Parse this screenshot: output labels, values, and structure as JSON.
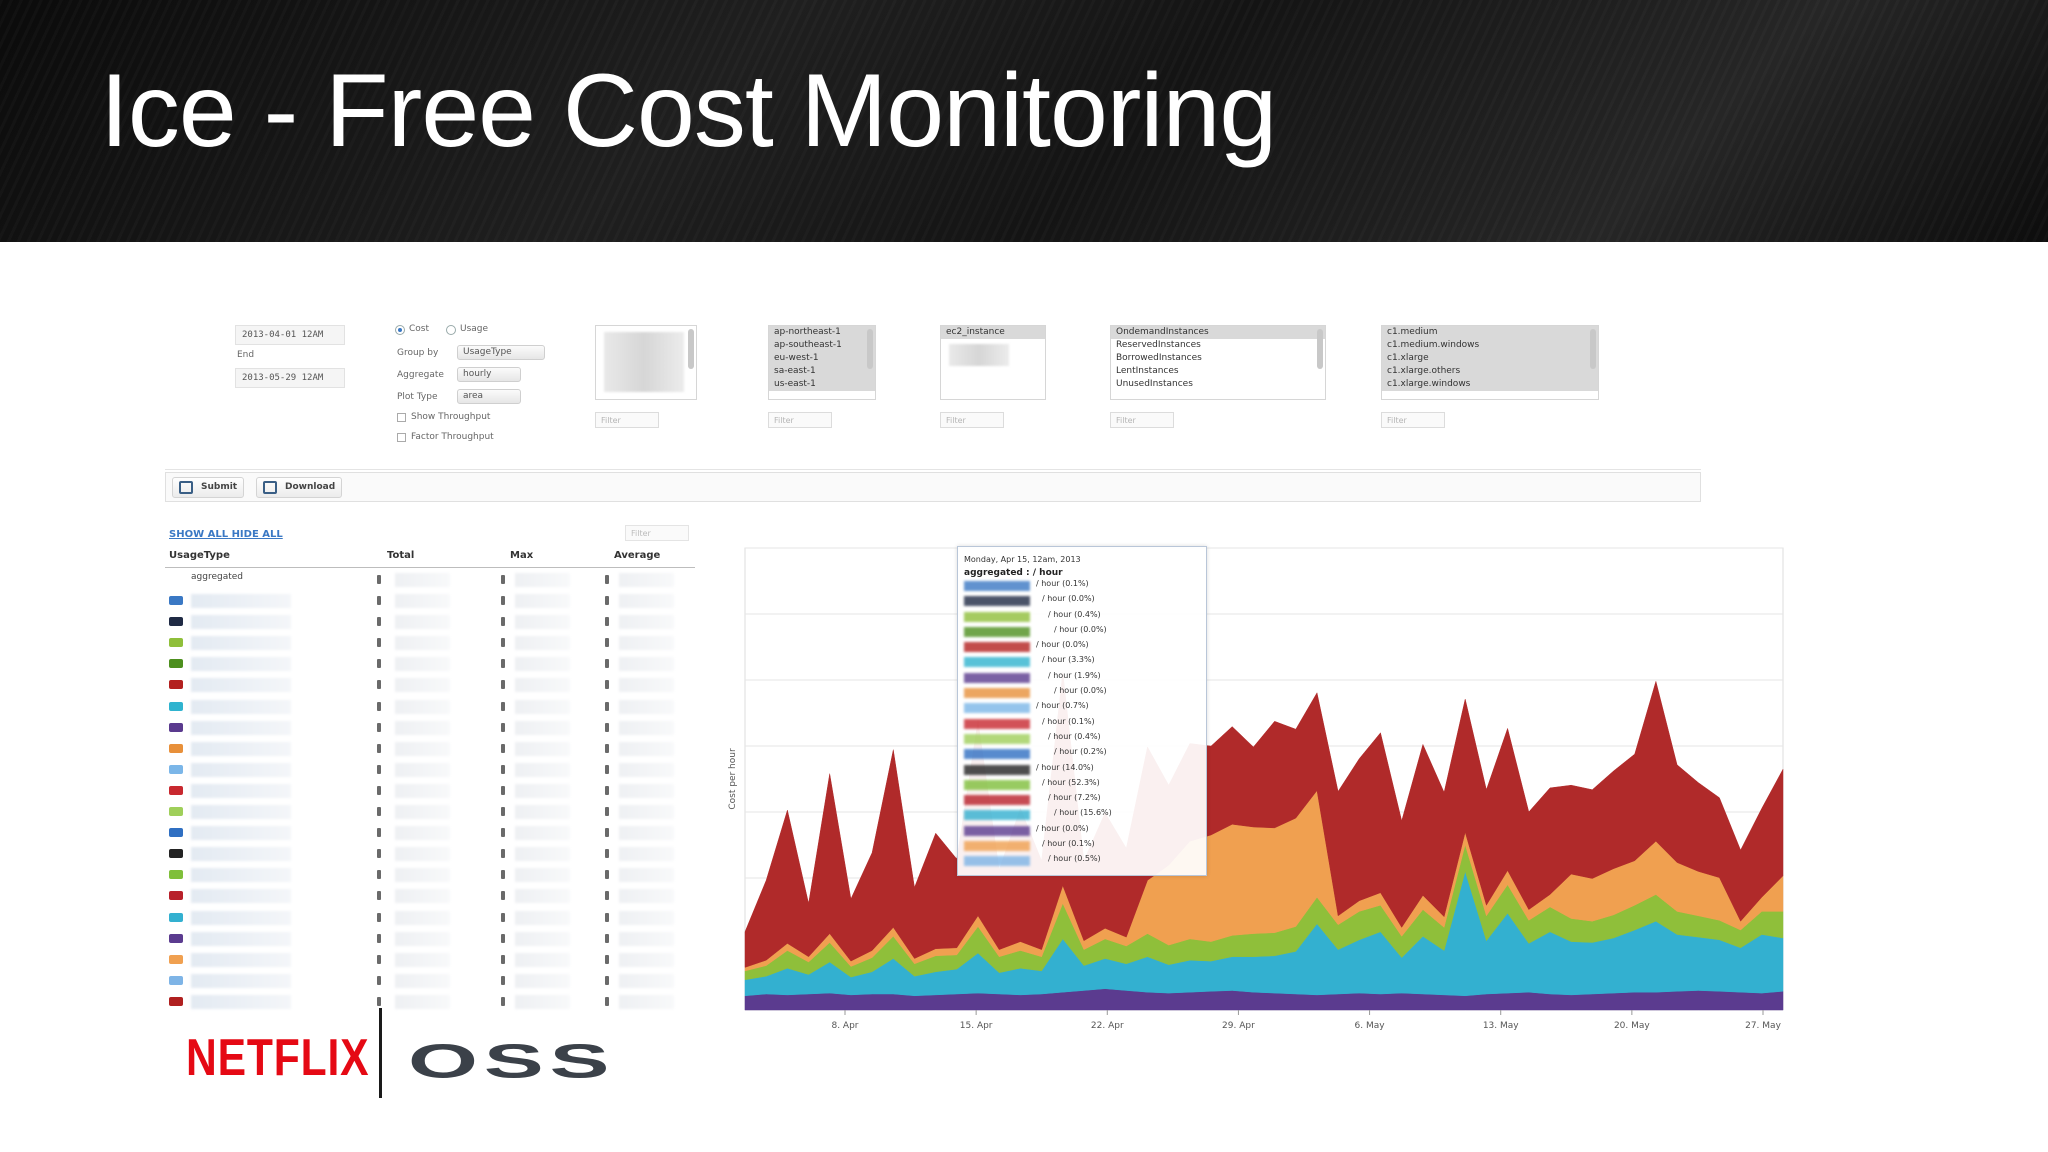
{
  "slide": {
    "title": "Ice - Free Cost Monitoring"
  },
  "controls": {
    "start_date": "2013-04-01 12AM",
    "end_label": "End",
    "end_date": "2013-05-29 12AM",
    "metric_cost": "Cost",
    "metric_usage": "Usage",
    "metric_selected": "Cost",
    "group_by_label": "Group by",
    "group_by_value": "UsageType",
    "aggregate_label": "Aggregate",
    "aggregate_value": "hourly",
    "plot_type_label": "Plot Type",
    "plot_type_value": "area",
    "show_throughput_label": "Show Throughput",
    "factor_throughput_label": "Factor Throughput",
    "filter_placeholder": "Filter",
    "regions": [
      "ap-northeast-1",
      "ap-southeast-1",
      "eu-west-1",
      "sa-east-1",
      "us-east-1"
    ],
    "products": [
      "ec2_instance"
    ],
    "operations": [
      "OndemandInstances",
      "ReservedInstances",
      "BorrowedInstances",
      "LentInstances",
      "UnusedInstances"
    ],
    "usage_types": [
      "c1.medium",
      "c1.medium.windows",
      "c1.xlarge",
      "c1.xlarge.others",
      "c1.xlarge.windows"
    ]
  },
  "toolbar": {
    "submit_label": "Submit",
    "download_label": "Download"
  },
  "legend": {
    "show_all": "SHOW ALL",
    "hide_all": "HIDE ALL",
    "filter_placeholder": "Filter",
    "columns": [
      "UsageType",
      "Total",
      "Max",
      "Average"
    ],
    "aggregated_label": "aggregated",
    "swatch_colors": [
      "#3a78c4",
      "#1f2a44",
      "#8fbf3a",
      "#4d8f1e",
      "#b3201f",
      "#2fb3cf",
      "#5a3a8e",
      "#e8903a",
      "#7bb6e8",
      "#c8282f",
      "#9fcf5a",
      "#2f6fc2",
      "#232323",
      "#7fbf3a",
      "#b8202a",
      "#33b0d0",
      "#5b3b8f",
      "#f0a050",
      "#7eb4e6",
      "#b02020"
    ]
  },
  "tooltip": {
    "title": "Monday, Apr 15, 12am, 2013",
    "aggregated_label": "aggregated",
    "aggregated_unit": "/ hour",
    "rows": [
      "/ hour (0.1%)",
      "/ hour (0.0%)",
      "/ hour (0.4%)",
      "/ hour (0.0%)",
      "/ hour (0.0%)",
      "/ hour (3.3%)",
      "/ hour (1.9%)",
      "/ hour (0.0%)",
      "/ hour (0.7%)",
      "/ hour (0.1%)",
      "/ hour (0.4%)",
      "/ hour (0.2%)",
      "/ hour (14.0%)",
      "/ hour (52.3%)",
      "/ hour (7.2%)",
      "/ hour (15.6%)",
      "/ hour (0.0%)",
      "/ hour (0.1%)",
      "/ hour (0.5%)"
    ]
  },
  "chart_data": {
    "type": "area",
    "ylabel": "Cost per hour",
    "xlabel": "",
    "x_ticks": [
      "8. Apr",
      "15. Apr",
      "22. Apr",
      "29. Apr",
      "6. May",
      "13. May",
      "20. May",
      "27. May"
    ],
    "grid": true,
    "stacked": true,
    "series_colors": [
      "#5b3b8f",
      "#33b0d0",
      "#8fbf3a",
      "#f0a050",
      "#b02a2a"
    ],
    "series": [
      {
        "values": [
          16,
          18,
          17,
          18,
          19,
          17,
          18,
          18,
          16,
          17,
          18,
          19,
          18,
          17,
          18,
          20,
          22,
          24,
          22,
          20,
          19,
          20,
          21,
          22,
          20,
          19,
          18,
          17,
          18,
          19,
          18,
          19,
          18,
          17,
          16,
          18,
          19,
          20,
          18,
          17,
          18,
          19,
          20,
          20,
          21,
          22,
          21,
          20,
          19,
          21
        ]
      },
      {
        "values": [
          18,
          20,
          30,
          22,
          35,
          20,
          25,
          40,
          22,
          26,
          28,
          45,
          24,
          30,
          26,
          60,
          28,
          34,
          30,
          40,
          32,
          36,
          34,
          38,
          40,
          42,
          48,
          80,
          50,
          60,
          70,
          40,
          65,
          50,
          140,
          60,
          90,
          55,
          70,
          60,
          58,
          62,
          70,
          80,
          64,
          60,
          58,
          50,
          66,
          60
        ]
      },
      {
        "values": [
          10,
          12,
          20,
          14,
          22,
          12,
          16,
          25,
          14,
          18,
          16,
          30,
          18,
          20,
          16,
          40,
          18,
          22,
          20,
          26,
          22,
          24,
          22,
          24,
          26,
          26,
          28,
          30,
          28,
          32,
          30,
          24,
          30,
          26,
          30,
          28,
          32,
          26,
          28,
          26,
          24,
          26,
          28,
          30,
          26,
          24,
          22,
          20,
          26,
          30
        ]
      },
      {
        "values": [
          4,
          6,
          8,
          6,
          10,
          6,
          8,
          10,
          6,
          8,
          8,
          12,
          8,
          10,
          8,
          20,
          10,
          12,
          10,
          60,
          90,
          110,
          120,
          125,
          120,
          118,
          122,
          120,
          10,
          12,
          14,
          10,
          16,
          12,
          14,
          12,
          16,
          12,
          14,
          50,
          48,
          52,
          50,
          60,
          55,
          50,
          48,
          10,
          16,
          40
        ]
      },
      {
        "values": [
          40,
          90,
          150,
          60,
          180,
          70,
          110,
          200,
          80,
          130,
          100,
          220,
          90,
          150,
          100,
          240,
          90,
          130,
          100,
          150,
          90,
          110,
          100,
          110,
          90,
          120,
          100,
          110,
          140,
          160,
          180,
          120,
          170,
          140,
          150,
          130,
          160,
          110,
          120,
          100,
          100,
          110,
          120,
          180,
          110,
          100,
          90,
          80,
          100,
          120
        ]
      }
    ]
  },
  "logos": {
    "netflix": "NETFLIX",
    "oss": "OSS"
  }
}
